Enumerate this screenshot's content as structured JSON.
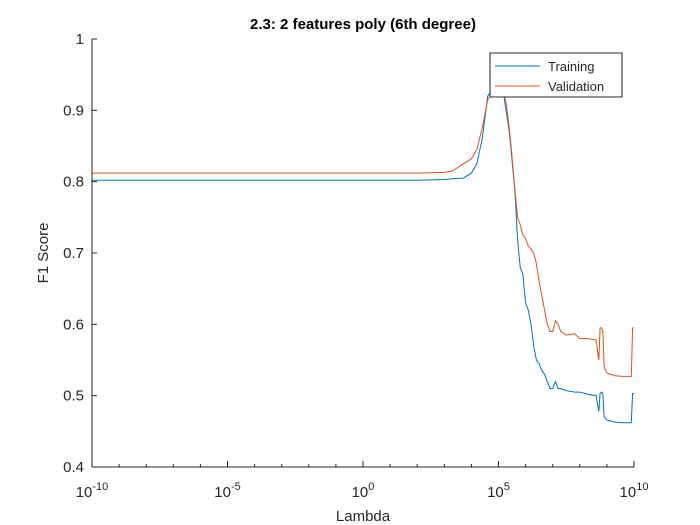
{
  "chart_data": {
    "type": "line",
    "title": "2.3: 2 features poly (6th degree)",
    "xlabel": "Lambda",
    "ylabel": "F1 Score",
    "xscale": "log",
    "xlim": [
      1e-10,
      10000000000.0
    ],
    "ylim": [
      0.4,
      1.0
    ],
    "grid": false,
    "legend_position": "top-right",
    "xticks": [
      {
        "base": "10",
        "exp": "-10",
        "value": -10
      },
      {
        "base": "10",
        "exp": "-5",
        "value": -5
      },
      {
        "base": "10",
        "exp": "0",
        "value": 0
      },
      {
        "base": "10",
        "exp": "5",
        "value": 5
      },
      {
        "base": "10",
        "exp": "10",
        "value": 10
      }
    ],
    "yticks": [
      "0.4",
      "0.5",
      "0.6",
      "0.7",
      "0.8",
      "0.9",
      "1"
    ],
    "series": [
      {
        "name": "Training",
        "color": "#0072BD",
        "x_log10": [
          -10,
          -5,
          0,
          1,
          2,
          3,
          3.3,
          3.7,
          4.0,
          4.2,
          4.4,
          4.6,
          4.8,
          5.0,
          5.1,
          5.2,
          5.3,
          5.4,
          5.5,
          5.6,
          5.7,
          5.8,
          5.9,
          6.0,
          6.1,
          6.2,
          6.3,
          6.4,
          6.5,
          6.6,
          6.7,
          6.8,
          6.9,
          7.0,
          7.1,
          7.2,
          7.3,
          7.5,
          7.8,
          8.0,
          8.3,
          8.6,
          8.7,
          8.75,
          8.8,
          8.85,
          8.9,
          9.0,
          9.3,
          9.6,
          9.9,
          9.95,
          10.0
        ],
        "values": [
          0.802,
          0.802,
          0.802,
          0.802,
          0.802,
          0.803,
          0.804,
          0.805,
          0.812,
          0.825,
          0.86,
          0.92,
          0.93,
          0.93,
          0.93,
          0.92,
          0.895,
          0.87,
          0.83,
          0.79,
          0.72,
          0.68,
          0.67,
          0.63,
          0.62,
          0.6,
          0.57,
          0.55,
          0.545,
          0.535,
          0.53,
          0.52,
          0.51,
          0.51,
          0.52,
          0.51,
          0.51,
          0.507,
          0.505,
          0.505,
          0.502,
          0.5,
          0.478,
          0.503,
          0.505,
          0.503,
          0.47,
          0.466,
          0.463,
          0.462,
          0.462,
          0.503,
          0.503
        ]
      },
      {
        "name": "Validation",
        "color": "#D95319",
        "x_log10": [
          -10,
          -5,
          0,
          1,
          2,
          3,
          3.3,
          3.7,
          4.0,
          4.2,
          4.4,
          4.6,
          4.8,
          5.0,
          5.1,
          5.2,
          5.3,
          5.4,
          5.5,
          5.6,
          5.7,
          5.8,
          5.9,
          6.0,
          6.1,
          6.2,
          6.3,
          6.4,
          6.5,
          6.6,
          6.7,
          6.8,
          6.9,
          7.0,
          7.1,
          7.2,
          7.3,
          7.5,
          7.8,
          8.0,
          8.3,
          8.6,
          8.7,
          8.75,
          8.8,
          8.85,
          8.9,
          9.0,
          9.3,
          9.6,
          9.9,
          9.95,
          10.0
        ],
        "values": [
          0.812,
          0.812,
          0.812,
          0.812,
          0.812,
          0.813,
          0.815,
          0.825,
          0.832,
          0.845,
          0.875,
          0.915,
          0.925,
          0.93,
          0.935,
          0.925,
          0.905,
          0.875,
          0.835,
          0.79,
          0.75,
          0.74,
          0.725,
          0.72,
          0.71,
          0.705,
          0.7,
          0.685,
          0.66,
          0.64,
          0.62,
          0.6,
          0.59,
          0.59,
          0.605,
          0.6,
          0.59,
          0.585,
          0.587,
          0.58,
          0.58,
          0.578,
          0.55,
          0.595,
          0.595,
          0.59,
          0.54,
          0.532,
          0.528,
          0.527,
          0.527,
          0.595,
          0.595
        ]
      }
    ]
  }
}
